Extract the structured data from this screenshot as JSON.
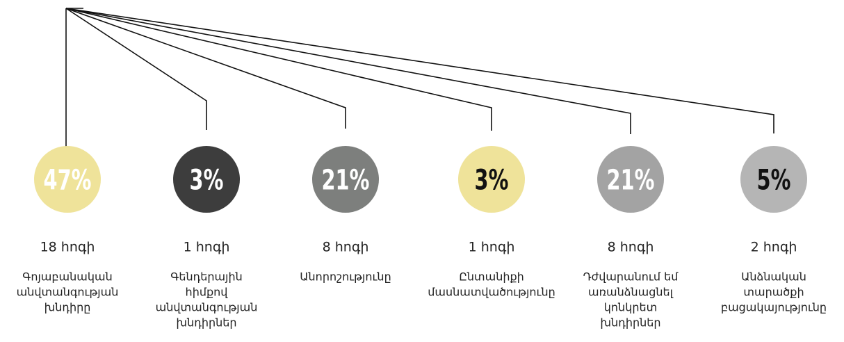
{
  "items": [
    {
      "percent": "47%",
      "count": "18 հոգի",
      "label": [
        "Գոյաբանական",
        "անվտանգության",
        "խնդիրը"
      ]
    },
    {
      "percent": "3%",
      "count": "1 հոգի",
      "label": [
        "Գենդերային",
        "հիմքով",
        "անվտանգության",
        "խնդիրներ"
      ]
    },
    {
      "percent": "21%",
      "count": "8 հոգի",
      "label": [
        "Անորոշությունը"
      ]
    },
    {
      "percent": "3%",
      "count": "1 հոգի",
      "label": [
        "Ընտանիքի",
        "մասնատվածությունը"
      ]
    },
    {
      "percent": "21%",
      "count": "8 հոգի",
      "label": [
        "Դժվարանում եմ",
        "առանձնացնել",
        "կոնկրետ",
        "խնդիրներ"
      ]
    },
    {
      "percent": "5%",
      "count": "2 հոգի",
      "label": [
        "Անձնական",
        "տարածքի",
        "բացակայությունը"
      ]
    }
  ]
}
